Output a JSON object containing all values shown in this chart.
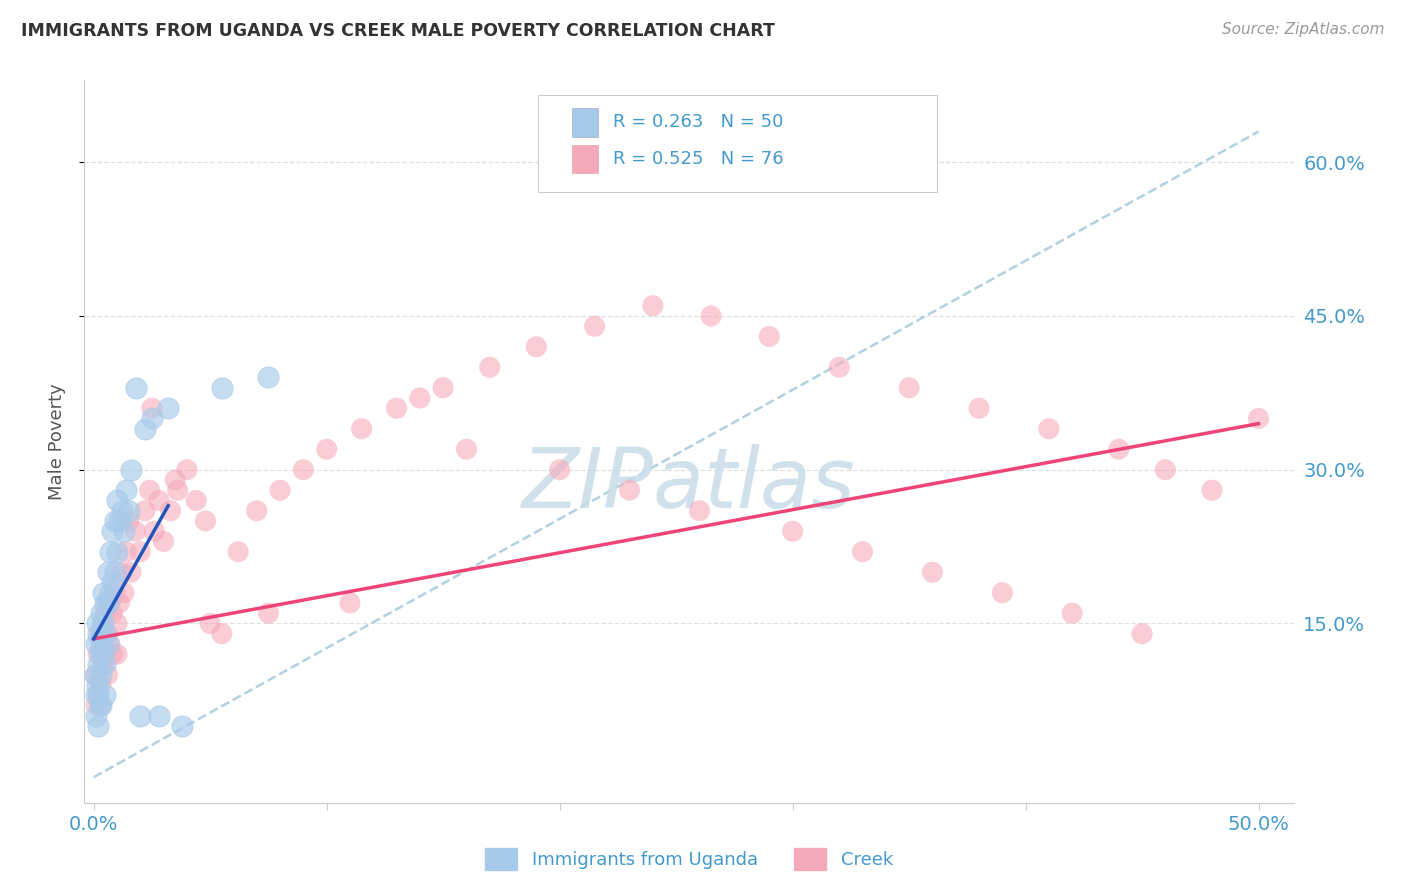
{
  "title": "IMMIGRANTS FROM UGANDA VS CREEK MALE POVERTY CORRELATION CHART",
  "source": "Source: ZipAtlas.com",
  "ylabel": "Male Poverty",
  "ytick_labels": [
    "15.0%",
    "30.0%",
    "45.0%",
    "60.0%"
  ],
  "ytick_values": [
    0.15,
    0.3,
    0.45,
    0.6
  ],
  "xlim": [
    -0.004,
    0.515
  ],
  "ylim": [
    -0.025,
    0.68
  ],
  "legend1_label": "R = 0.263   N = 50",
  "legend2_label": "R = 0.525   N = 76",
  "legend_bottom_label1": "Immigrants from Uganda",
  "legend_bottom_label2": "Creek",
  "watermark": "ZIPatlas",
  "blue_scatter_color": "#A8CAEA",
  "pink_scatter_color": "#F5AABB",
  "blue_line_color": "#2255BB",
  "pink_line_color": "#EE4477",
  "dashed_line_color": "#AACCDD",
  "axis_label_color": "#4499CC",
  "title_color": "#333333",
  "source_color": "#999999",
  "grid_color": "#DDDDDD",
  "uganda_x": [
    0.0005,
    0.0008,
    0.001,
    0.001,
    0.0015,
    0.0015,
    0.002,
    0.002,
    0.002,
    0.002,
    0.0025,
    0.0025,
    0.003,
    0.003,
    0.003,
    0.003,
    0.0035,
    0.004,
    0.004,
    0.004,
    0.005,
    0.005,
    0.005,
    0.005,
    0.006,
    0.006,
    0.006,
    0.007,
    0.007,
    0.008,
    0.008,
    0.009,
    0.009,
    0.01,
    0.01,
    0.011,
    0.012,
    0.013,
    0.014,
    0.015,
    0.016,
    0.018,
    0.02,
    0.022,
    0.025,
    0.028,
    0.032,
    0.038,
    0.055,
    0.075
  ],
  "uganda_y": [
    0.1,
    0.08,
    0.13,
    0.06,
    0.15,
    0.09,
    0.14,
    0.11,
    0.08,
    0.05,
    0.12,
    0.07,
    0.16,
    0.13,
    0.1,
    0.07,
    0.14,
    0.18,
    0.15,
    0.12,
    0.17,
    0.14,
    0.11,
    0.08,
    0.2,
    0.17,
    0.13,
    0.22,
    0.18,
    0.24,
    0.19,
    0.25,
    0.2,
    0.27,
    0.22,
    0.25,
    0.26,
    0.24,
    0.28,
    0.26,
    0.3,
    0.38,
    0.06,
    0.34,
    0.35,
    0.06,
    0.36,
    0.05,
    0.38,
    0.39
  ],
  "creek_x": [
    0.001,
    0.001,
    0.002,
    0.002,
    0.003,
    0.003,
    0.004,
    0.004,
    0.005,
    0.005,
    0.006,
    0.006,
    0.007,
    0.007,
    0.008,
    0.008,
    0.009,
    0.01,
    0.01,
    0.011,
    0.012,
    0.013,
    0.014,
    0.015,
    0.016,
    0.018,
    0.02,
    0.022,
    0.024,
    0.026,
    0.028,
    0.03,
    0.033,
    0.036,
    0.04,
    0.044,
    0.048,
    0.055,
    0.062,
    0.07,
    0.08,
    0.09,
    0.1,
    0.115,
    0.13,
    0.15,
    0.17,
    0.19,
    0.215,
    0.24,
    0.265,
    0.29,
    0.32,
    0.35,
    0.38,
    0.41,
    0.44,
    0.46,
    0.48,
    0.5,
    0.025,
    0.035,
    0.05,
    0.075,
    0.11,
    0.14,
    0.16,
    0.2,
    0.23,
    0.26,
    0.3,
    0.33,
    0.36,
    0.39,
    0.42,
    0.45
  ],
  "creek_y": [
    0.1,
    0.07,
    0.12,
    0.08,
    0.14,
    0.09,
    0.15,
    0.11,
    0.16,
    0.12,
    0.14,
    0.1,
    0.17,
    0.13,
    0.16,
    0.12,
    0.18,
    0.15,
    0.12,
    0.17,
    0.2,
    0.18,
    0.22,
    0.25,
    0.2,
    0.24,
    0.22,
    0.26,
    0.28,
    0.24,
    0.27,
    0.23,
    0.26,
    0.28,
    0.3,
    0.27,
    0.25,
    0.14,
    0.22,
    0.26,
    0.28,
    0.3,
    0.32,
    0.34,
    0.36,
    0.38,
    0.4,
    0.42,
    0.44,
    0.46,
    0.45,
    0.43,
    0.4,
    0.38,
    0.36,
    0.34,
    0.32,
    0.3,
    0.28,
    0.35,
    0.36,
    0.29,
    0.15,
    0.16,
    0.17,
    0.37,
    0.32,
    0.3,
    0.28,
    0.26,
    0.24,
    0.22,
    0.2,
    0.18,
    0.16,
    0.14
  ],
  "uganda_line_x": [
    0.0,
    0.032
  ],
  "uganda_line_y": [
    0.135,
    0.265
  ],
  "creek_line_x": [
    0.0,
    0.5
  ],
  "creek_line_y": [
    0.135,
    0.345
  ],
  "dash_line_x": [
    0.0,
    0.5
  ],
  "dash_line_y": [
    0.0,
    0.63
  ]
}
